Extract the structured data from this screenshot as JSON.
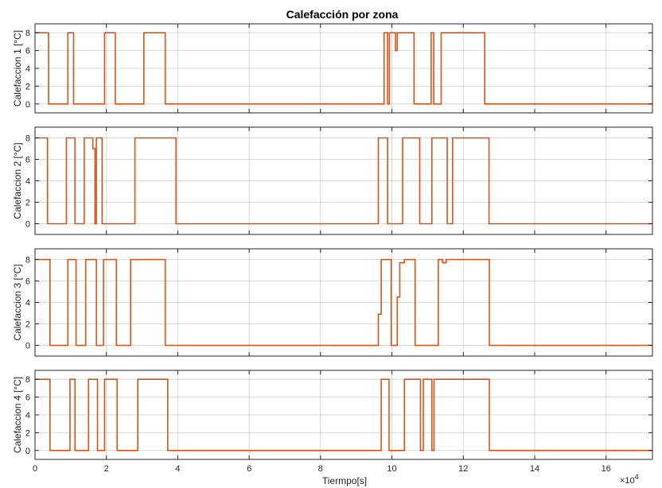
{
  "figure": {
    "title": "Calefacción por zona",
    "xlabel": "Tiermpo[s]",
    "x_exponent_label": "×10",
    "x_exponent_power": "4"
  },
  "chart_data": {
    "type": "line",
    "title": "Calefacción por zona",
    "xlabel": "Tiermpo[s]",
    "x_scale_note": "×10^4",
    "xlim": [
      0,
      17.3
    ],
    "x_ticks": [
      0,
      2,
      4,
      6,
      8,
      10,
      12,
      14,
      16
    ],
    "grid": true,
    "line_color": "#d95319",
    "panels": [
      {
        "ylabel": "Calefaccion 1 [°C]",
        "ylim": [
          -1,
          9
        ],
        "y_ticks": [
          0,
          2,
          4,
          6,
          8
        ],
        "x": [
          0,
          0.38,
          0.38,
          0.92,
          0.92,
          1.08,
          1.08,
          1.95,
          1.95,
          2.25,
          2.25,
          3.05,
          3.05,
          3.65,
          3.65,
          9.78,
          9.78,
          9.88,
          9.88,
          9.93,
          9.93,
          10.1,
          10.1,
          10.15,
          10.15,
          10.22,
          10.22,
          10.62,
          10.62,
          11.1,
          11.1,
          11.17,
          11.17,
          11.38,
          11.38,
          12.6,
          12.6,
          17.3
        ],
        "y": [
          8,
          8,
          0,
          0,
          8,
          8,
          0,
          0,
          8,
          8,
          0,
          0,
          8,
          8,
          0,
          0,
          8,
          8,
          0,
          0,
          8,
          8,
          6,
          6,
          8,
          8,
          8,
          8,
          0,
          0,
          8,
          8,
          0,
          0,
          8,
          8,
          0,
          0
        ]
      },
      {
        "ylabel": "Calefaccion 2 [°C]",
        "ylim": [
          -1,
          9
        ],
        "y_ticks": [
          0,
          2,
          4,
          6,
          8
        ],
        "x": [
          0,
          0.35,
          0.35,
          0.88,
          0.88,
          1.12,
          1.12,
          1.38,
          1.38,
          1.62,
          1.62,
          1.68,
          1.68,
          1.72,
          1.72,
          1.88,
          1.88,
          2.25,
          2.25,
          2.35,
          2.35,
          2.8,
          2.8,
          3.95,
          3.95,
          9.62,
          9.62,
          9.88,
          9.88,
          10.3,
          10.3,
          10.78,
          10.78,
          11.12,
          11.12,
          11.55,
          11.55,
          11.7,
          11.7,
          12.72,
          12.72,
          17.3
        ],
        "y": [
          8,
          8,
          0,
          0,
          8,
          8,
          0,
          0,
          8,
          8,
          7,
          7,
          0,
          0,
          8,
          8,
          0,
          0,
          0,
          0,
          0,
          0,
          8,
          8,
          0,
          0,
          8,
          8,
          0,
          0,
          8,
          8,
          0,
          0,
          8,
          8,
          0,
          0,
          8,
          8,
          0,
          0
        ]
      },
      {
        "ylabel": "Calefaccion 3 [°C]",
        "ylim": [
          -1,
          9
        ],
        "y_ticks": [
          0,
          2,
          4,
          6,
          8
        ],
        "x": [
          0,
          0.42,
          0.42,
          0.92,
          0.92,
          1.15,
          1.15,
          1.42,
          1.42,
          1.72,
          1.72,
          1.92,
          1.92,
          2.28,
          2.28,
          2.68,
          2.68,
          3.65,
          3.65,
          9.62,
          9.62,
          9.7,
          9.7,
          9.98,
          9.98,
          10.15,
          10.15,
          10.22,
          10.22,
          10.35,
          10.35,
          10.65,
          10.65,
          11.3,
          11.3,
          11.42,
          11.42,
          11.52,
          11.52,
          12.73,
          12.73,
          17.3
        ],
        "y": [
          8,
          8,
          0,
          0,
          8,
          8,
          0,
          0,
          8,
          8,
          0,
          0,
          8,
          8,
          0,
          0,
          8,
          8,
          0,
          0,
          2.9,
          2.9,
          8,
          8,
          0,
          0,
          4.5,
          4.5,
          7.7,
          7.7,
          8,
          8,
          0,
          0,
          8,
          8,
          7.7,
          7.7,
          8,
          8,
          0,
          0
        ]
      },
      {
        "ylabel": "Calefaccion 4 [°C]",
        "ylim": [
          -1,
          9
        ],
        "y_ticks": [
          0,
          2,
          4,
          6,
          8
        ],
        "x": [
          0,
          0.42,
          0.42,
          0.98,
          0.98,
          1.12,
          1.12,
          1.5,
          1.5,
          1.75,
          1.75,
          1.95,
          1.95,
          2.3,
          2.3,
          2.88,
          2.88,
          3.72,
          3.72,
          9.7,
          9.7,
          9.92,
          9.92,
          10.35,
          10.35,
          10.8,
          10.8,
          10.88,
          10.88,
          11.12,
          11.12,
          11.18,
          11.18,
          12.73,
          12.73,
          17.3
        ],
        "y": [
          8,
          8,
          0,
          0,
          8,
          8,
          0,
          0,
          8,
          8,
          0,
          0,
          8,
          8,
          0,
          0,
          8,
          8,
          0,
          0,
          8,
          8,
          0,
          0,
          8,
          8,
          0,
          0,
          8,
          8,
          0,
          0,
          8,
          8,
          0,
          0
        ]
      }
    ]
  }
}
